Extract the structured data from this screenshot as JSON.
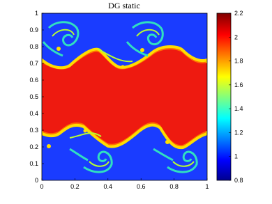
{
  "chart_data": {
    "type": "heatmap",
    "title": "DG static",
    "xlim": [
      0,
      1
    ],
    "xticks": [
      0,
      0.2,
      0.4,
      0.6,
      0.8,
      1
    ],
    "ylim": [
      0,
      1
    ],
    "yticks": [
      0,
      0.1,
      0.2,
      0.3,
      0.4,
      0.5,
      0.6,
      0.7,
      0.8,
      0.9,
      1
    ],
    "clim": [
      0.8,
      2.2
    ],
    "cticks": [
      0.8,
      1,
      1.2,
      1.4,
      1.6,
      1.8,
      2,
      2.2
    ],
    "colormap": "jet"
  }
}
